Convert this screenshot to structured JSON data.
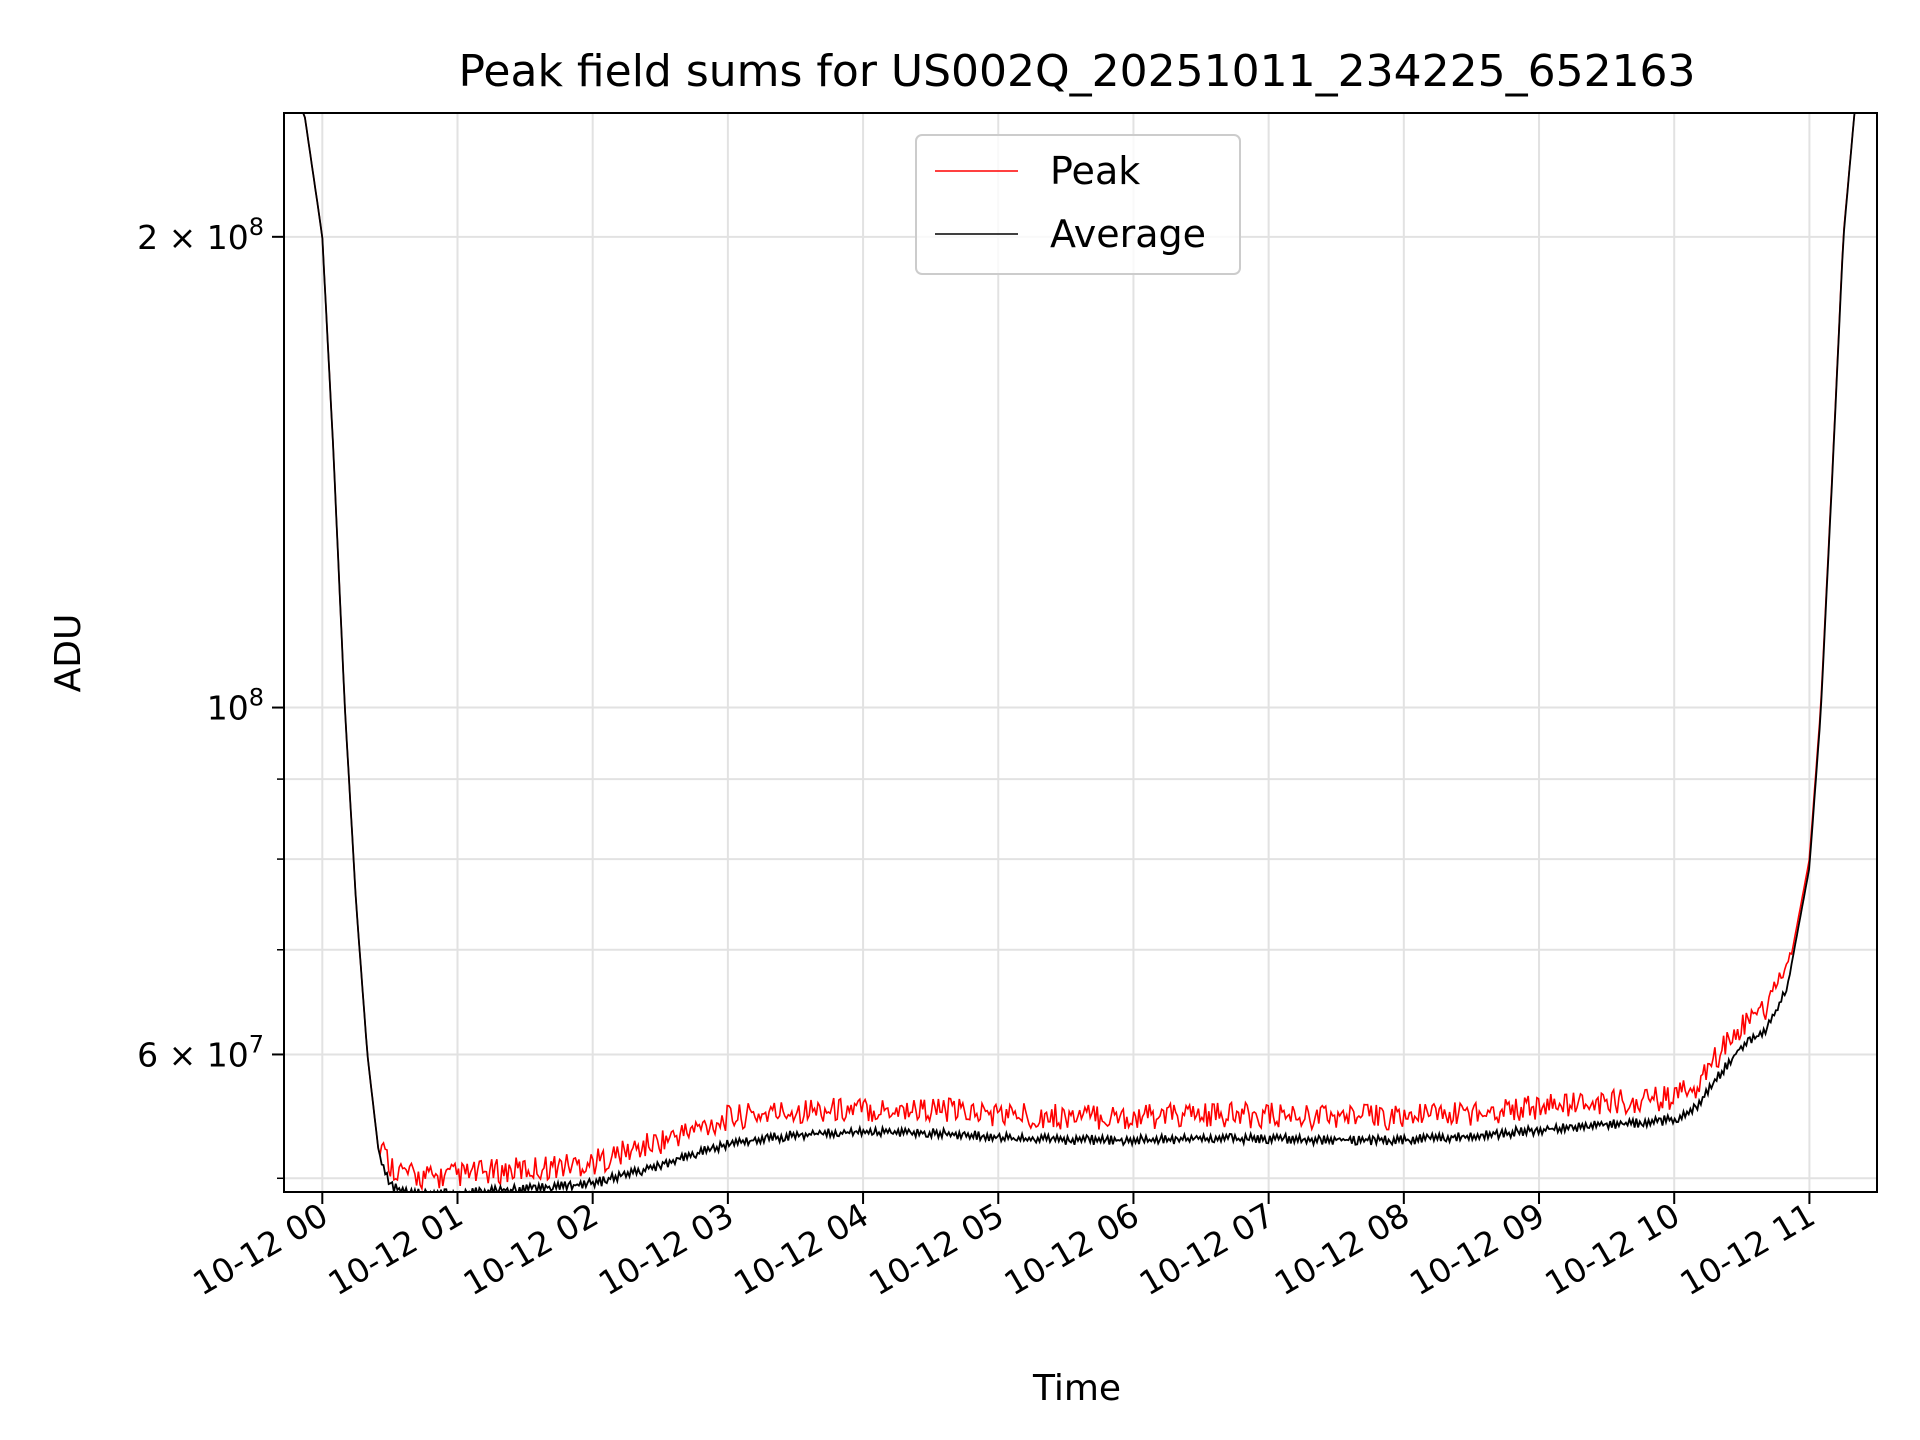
{
  "chart_data": {
    "type": "line",
    "title": "Peak field sums for US002Q_20251011_234225_652163",
    "xlabel": "Time",
    "ylabel": "ADU",
    "yscale": "log",
    "grid": true,
    "legend_position": "top-center",
    "xlim": [
      "2025-10-11 23:43",
      "2025-10-12 11:30"
    ],
    "ylim": [
      49000000,
      240000000
    ],
    "x_ticks": [
      "10-12 00",
      "10-12 01",
      "10-12 02",
      "10-12 03",
      "10-12 04",
      "10-12 05",
      "10-12 06",
      "10-12 07",
      "10-12 08",
      "10-12 09",
      "10-12 10",
      "10-12 11"
    ],
    "y_tick_labels": [
      "2 × 10^8",
      "10^8",
      "6 × 10^7"
    ],
    "y_tick_values": [
      200000000,
      100000000,
      60000000
    ],
    "y_minor_ticks": [
      50000000,
      70000000,
      80000000,
      90000000
    ],
    "series": [
      {
        "name": "Peak",
        "color": "#ff0000",
        "x": [
          "2025-10-11 23:43",
          "2025-10-11 23:52",
          "2025-10-12 00:00",
          "2025-10-12 00:05",
          "2025-10-12 00:10",
          "2025-10-12 00:15",
          "2025-10-12 00:20",
          "2025-10-12 00:25",
          "2025-10-12 00:30",
          "2025-10-12 00:40",
          "2025-10-12 00:50",
          "2025-10-12 01:00",
          "2025-10-12 01:30",
          "2025-10-12 02:00",
          "2025-10-12 02:30",
          "2025-10-12 03:00",
          "2025-10-12 03:30",
          "2025-10-12 04:00",
          "2025-10-12 04:30",
          "2025-10-12 05:00",
          "2025-10-12 05:30",
          "2025-10-12 06:00",
          "2025-10-12 06:30",
          "2025-10-12 07:00",
          "2025-10-12 07:30",
          "2025-10-12 08:00",
          "2025-10-12 08:30",
          "2025-10-12 09:00",
          "2025-10-12 09:30",
          "2025-10-12 10:00",
          "2025-10-12 10:10",
          "2025-10-12 10:20",
          "2025-10-12 10:30",
          "2025-10-12 10:40",
          "2025-10-12 10:50",
          "2025-10-12 11:00",
          "2025-10-12 11:05",
          "2025-10-12 11:10",
          "2025-10-12 11:15",
          "2025-10-12 11:20"
        ],
        "y": [
          240000000,
          240000000,
          200000000,
          145000000,
          100000000,
          75000000,
          60000000,
          52000000,
          50000000,
          49200000,
          49100000,
          49300000,
          49700000,
          50200000,
          51800000,
          53600000,
          54200000,
          54300000,
          54300000,
          53900000,
          53700000,
          53700000,
          53800000,
          53800000,
          53700000,
          53700000,
          54000000,
          54500000,
          54800000,
          55200000,
          56200000,
          59000000,
          61500000,
          62700000,
          67000000,
          80000000,
          100000000,
          140000000,
          200000000,
          240000000
        ]
      },
      {
        "name": "Average",
        "color": "#000000",
        "x": [
          "2025-10-11 23:43",
          "2025-10-11 23:52",
          "2025-10-12 00:00",
          "2025-10-12 00:05",
          "2025-10-12 00:10",
          "2025-10-12 00:15",
          "2025-10-12 00:20",
          "2025-10-12 00:25",
          "2025-10-12 00:30",
          "2025-10-12 00:40",
          "2025-10-12 00:50",
          "2025-10-12 01:00",
          "2025-10-12 01:30",
          "2025-10-12 02:00",
          "2025-10-12 02:30",
          "2025-10-12 03:00",
          "2025-10-12 03:30",
          "2025-10-12 04:00",
          "2025-10-12 04:30",
          "2025-10-12 05:00",
          "2025-10-12 05:30",
          "2025-10-12 06:00",
          "2025-10-12 06:30",
          "2025-10-12 07:00",
          "2025-10-12 07:30",
          "2025-10-12 08:00",
          "2025-10-12 08:30",
          "2025-10-12 09:00",
          "2025-10-12 09:30",
          "2025-10-12 10:00",
          "2025-10-12 10:10",
          "2025-10-12 10:20",
          "2025-10-12 10:30",
          "2025-10-12 10:40",
          "2025-10-12 10:50",
          "2025-10-12 11:00",
          "2025-10-12 11:05",
          "2025-10-12 11:10",
          "2025-10-12 11:15",
          "2025-10-12 11:20"
        ],
        "y": [
          240000000,
          240000000,
          200000000,
          145000000,
          100000000,
          75000000,
          60000000,
          52000000,
          49400000,
          48900000,
          48800000,
          48900000,
          49200000,
          49600000,
          51000000,
          52600000,
          53300000,
          53500000,
          53500000,
          53100000,
          52900000,
          52900000,
          53000000,
          53000000,
          52900000,
          52900000,
          53200000,
          53700000,
          54100000,
          54500000,
          55500000,
          58200000,
          60800000,
          62000000,
          66000000,
          79000000,
          99000000,
          139000000,
          199000000,
          240000000
        ]
      }
    ]
  }
}
